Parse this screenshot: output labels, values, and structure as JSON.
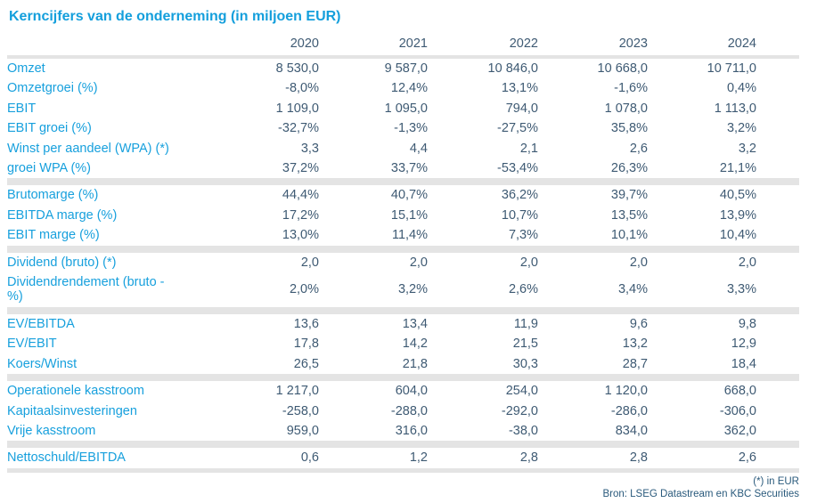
{
  "title": "Kerncijfers van de onderneming (in miljoen EUR)",
  "colors": {
    "accent_blue": "#149fdc",
    "value_text": "#3e5a73",
    "separator_gray": "#e4e4e4",
    "footer_text": "#2a5a7c"
  },
  "table": {
    "years": [
      "2020",
      "2021",
      "2022",
      "2023",
      "2024"
    ],
    "sections": [
      {
        "rows": [
          {
            "label": "Omzet",
            "values": [
              "8 530,0",
              "9 587,0",
              "10 846,0",
              "10 668,0",
              "10 711,0"
            ]
          },
          {
            "label": "Omzetgroei (%)",
            "values": [
              "-8,0%",
              "12,4%",
              "13,1%",
              "-1,6%",
              "0,4%"
            ]
          },
          {
            "label": "EBIT",
            "values": [
              "1 109,0",
              "1 095,0",
              "794,0",
              "1 078,0",
              "1 113,0"
            ]
          },
          {
            "label": "EBIT groei (%)",
            "values": [
              "-32,7%",
              "-1,3%",
              "-27,5%",
              "35,8%",
              "3,2%"
            ]
          },
          {
            "label": "Winst per aandeel (WPA) (*)",
            "values": [
              "3,3",
              "4,4",
              "2,1",
              "2,6",
              "3,2"
            ]
          },
          {
            "label": "groei WPA (%)",
            "values": [
              "37,2%",
              "33,7%",
              "-53,4%",
              "26,3%",
              "21,1%"
            ]
          }
        ]
      },
      {
        "rows": [
          {
            "label": "Brutomarge (%)",
            "values": [
              "44,4%",
              "40,7%",
              "36,2%",
              "39,7%",
              "40,5%"
            ]
          },
          {
            "label": "EBITDA marge (%)",
            "values": [
              "17,2%",
              "15,1%",
              "10,7%",
              "13,5%",
              "13,9%"
            ]
          },
          {
            "label": "EBIT marge (%)",
            "values": [
              "13,0%",
              "11,4%",
              "7,3%",
              "10,1%",
              "10,4%"
            ]
          }
        ]
      },
      {
        "rows": [
          {
            "label": "Dividend (bruto) (*)",
            "values": [
              "2,0",
              "2,0",
              "2,0",
              "2,0",
              "2,0"
            ]
          },
          {
            "label": "Dividendrendement (bruto - %)",
            "wrap": true,
            "values": [
              "2,0%",
              "3,2%",
              "2,6%",
              "3,4%",
              "3,3%"
            ]
          }
        ]
      },
      {
        "rows": [
          {
            "label": "EV/EBITDA",
            "values": [
              "13,6",
              "13,4",
              "11,9",
              "9,6",
              "9,8"
            ]
          },
          {
            "label": "EV/EBIT",
            "values": [
              "17,8",
              "14,2",
              "21,5",
              "13,2",
              "12,9"
            ]
          },
          {
            "label": "Koers/Winst",
            "values": [
              "26,5",
              "21,8",
              "30,3",
              "28,7",
              "18,4"
            ]
          }
        ]
      },
      {
        "rows": [
          {
            "label": "Operationele kasstroom",
            "values": [
              "1 217,0",
              "604,0",
              "254,0",
              "1 120,0",
              "668,0"
            ]
          },
          {
            "label": "Kapitaalsinvesteringen",
            "values": [
              "-258,0",
              "-288,0",
              "-292,0",
              "-286,0",
              "-306,0"
            ]
          },
          {
            "label": "Vrije kasstroom",
            "values": [
              "959,0",
              "316,0",
              "-38,0",
              "834,0",
              "362,0"
            ]
          }
        ]
      },
      {
        "rows": [
          {
            "label": "Nettoschuld/EBITDA",
            "values": [
              "0,6",
              "1,2",
              "2,8",
              "2,8",
              "2,6"
            ]
          }
        ]
      }
    ]
  },
  "footer": {
    "note": "(*) in EUR",
    "source": "Bron: LSEG Datastream en KBC Securities"
  }
}
